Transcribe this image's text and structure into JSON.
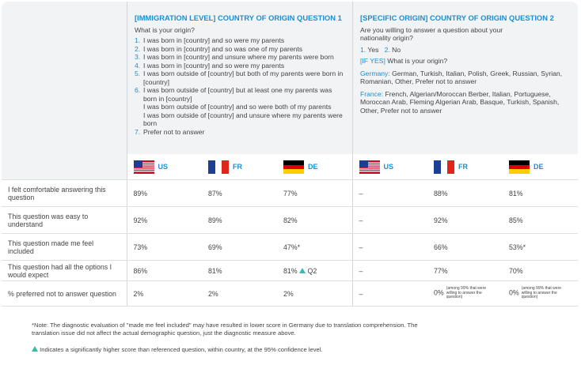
{
  "questions": [
    {
      "title": "[IMMIGRATION LEVEL] COUNTRY OF ORIGIN QUESTION 1",
      "prompt": "What is your origin?",
      "options": [
        {
          "num": "1.",
          "text": "I was born in [country] and so were my parents"
        },
        {
          "num": "2.",
          "text": "I was born in [country] and so was one of my parents"
        },
        {
          "num": "3.",
          "text": "I was born in [country] and unsure where my parents were born"
        },
        {
          "num": "4.",
          "text": "I was born in [country] and so were my parents"
        },
        {
          "num": "5.",
          "text": "I was born outside of [country] but both of my parents were born in [country]"
        },
        {
          "num": "6.",
          "text": "I was born outside of [country] but at least one my parents was born in [country]",
          "extra": [
            "I was born outside of [country] and so were both of my parents",
            "I was born outside of [country] and unsure where my parents were born"
          ]
        },
        {
          "num": "7.",
          "text": "Prefer not to answer"
        }
      ]
    },
    {
      "title": "[SPECIFIC ORIGIN] COUNTRY OF ORIGIN QUESTION 2",
      "prompt": "Are you willing to answer a question about your nationality origin?",
      "options": [
        {
          "num": "1.",
          "text": "Yes"
        },
        {
          "num": "2.",
          "text": "No"
        }
      ],
      "followup": {
        "tag": "[IF YES]",
        "text": "What is your origin?"
      },
      "lists": [
        {
          "country": "Germany:",
          "text": "German, Turkish, Italian, Polish, Greek, Russian, Syrian, Romanian, Other, Prefer not to answer"
        },
        {
          "country": "France:",
          "text": "French, Algerian/Moroccan Berber, Italian, Portuguese, Moroccan Arab, Fleming Algerian Arab, Basque, Turkish, Spanish, Other, Prefer not to answer"
        }
      ]
    }
  ],
  "countries": [
    "US",
    "FR",
    "DE",
    "US",
    "FR",
    "DE"
  ],
  "rows": [
    {
      "label": "I felt comfortable answering this question",
      "cells": [
        "89%",
        "87%",
        "77%",
        "–",
        "88%",
        "81%"
      ]
    },
    {
      "label": "This question was easy to understand",
      "cells": [
        "92%",
        "89%",
        "82%",
        "–",
        "92%",
        "85%"
      ]
    },
    {
      "label": "This question made me feel included",
      "cells": [
        "73%",
        "69%",
        "47%*",
        "–",
        "66%",
        "53%*"
      ]
    },
    {
      "label": "This question had all the options I would expect",
      "cells": [
        "86%",
        "81%",
        {
          "value": "81%",
          "badge": "Q2"
        },
        "–",
        "77%",
        "70%"
      ]
    },
    {
      "label": "% preferred not to answer question",
      "cells": [
        "2%",
        "2%",
        "2%",
        "–",
        {
          "value": "0%",
          "note": "(among 99% that were willing to answer the question)"
        },
        {
          "value": "0%",
          "note": "(among 99% that were willing to answer the question)"
        }
      ]
    }
  ],
  "footnotes": {
    "note": "*Note: The diagnostic evaluation of \"made me feel included\" may have resulted in lower score in Germany due to translation comprehension. The translation issue did not affect the actual demographic question, just the diagnostic measure above.",
    "legend": "Indicates a significantly higher score than referenced question, within country, at the 95% confidence level."
  }
}
